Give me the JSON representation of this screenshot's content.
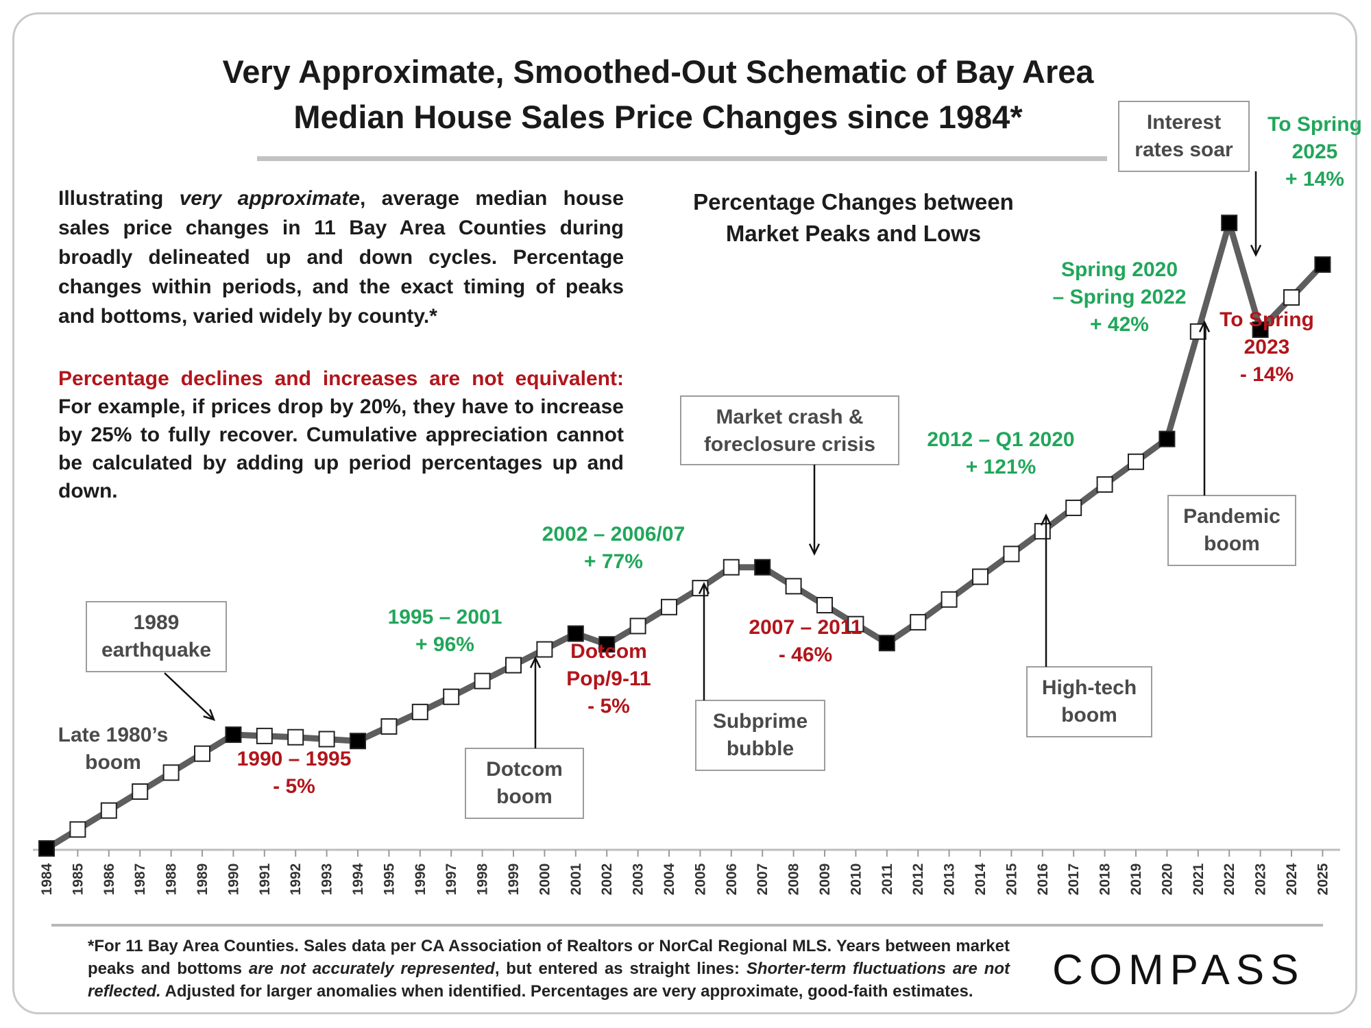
{
  "title": {
    "line1": "Very Approximate, Smoothed-Out Schematic of Bay Area",
    "line2": "Median House Sales Price Changes since 1984*"
  },
  "description": {
    "p1_a": "Illustrating ",
    "p1_em": "very approximate",
    "p1_b": ", average median house sales price changes in 11 Bay Area Counties during broadly delineated up and down cycles. Percentage changes within periods, and the exact timing of peaks and bottoms, varied widely by county.*",
    "p2_red": "Percentage declines and increases are not equivalent:",
    "p2_b": " For example, if prices drop by 20%, they have to increase by 25% to fully recover. Cumulative appreciation cannot be calculated by adding up period percentages up and down."
  },
  "subhead": {
    "line1": "Percentage Changes between",
    "line2": "Market Peaks and Lows"
  },
  "footnote": {
    "a": "*For 11 Bay Area Counties. Sales data per CA Association of Realtors or NorCal Regional MLS. Years between market peaks and bottoms ",
    "em1": "are not accurately represented",
    "b": ", but entered as straight lines: ",
    "em2": "Shorter-term fluctuations are not reflected.",
    "c": " Adjusted for larger anomalies when identified. Percentages are very approximate, good-faith estimates."
  },
  "logo": "COMPASS",
  "colors": {
    "line": "#5e5e5e",
    "green": "#21a65a",
    "red": "#b2151b",
    "gray_text": "#4a4a4a",
    "peak_marker": "#000000",
    "point_marker": "#ffffff"
  },
  "chart_data": {
    "type": "line",
    "x": [
      1984,
      1985,
      1986,
      1987,
      1988,
      1989,
      1990,
      1991,
      1992,
      1993,
      1994,
      1995,
      1996,
      1997,
      1998,
      1999,
      2000,
      2001,
      2002,
      2003,
      2004,
      2005,
      2006,
      2007,
      2008,
      2009,
      2010,
      2011,
      2012,
      2013,
      2014,
      2015,
      2016,
      2017,
      2018,
      2019,
      2020,
      2021,
      2022,
      2023,
      2024,
      2025
    ],
    "tick_labels": [
      "1984",
      "1985",
      "1986",
      "1987",
      "1988",
      "1989",
      "1990",
      "1991",
      "1992",
      "1993",
      "1994",
      "1995",
      "1996",
      "1997",
      "1998",
      "1999",
      "2000",
      "2001",
      "2002",
      "2003",
      "2004",
      "2005",
      "2006",
      "2007",
      "2008",
      "2009",
      "2010",
      "2011",
      "2012",
      "2013",
      "2014",
      "2015",
      "2016",
      "2017",
      "2018",
      "2019",
      "2020",
      "2021",
      "2022",
      "2023",
      "2024",
      "2025"
    ],
    "values": [
      0,
      3,
      6,
      9,
      12,
      15,
      18,
      17.8,
      17.6,
      17.3,
      17,
      19.3,
      21.6,
      24,
      26.5,
      29,
      31.5,
      34,
      32.3,
      35.2,
      38.2,
      41.2,
      44.5,
      44.5,
      41.5,
      38.5,
      35.5,
      32.5,
      35.8,
      39.4,
      43,
      46.6,
      50.2,
      53.9,
      57.6,
      61.2,
      64.8,
      81.8,
      99,
      82.1,
      87.2,
      92.4
    ],
    "turning_points": [
      1984,
      1990,
      1994,
      2001,
      2002,
      2007,
      2011,
      2020,
      2022,
      2023,
      2025
    ],
    "ylim": [
      0,
      100
    ],
    "xlabel": "",
    "ylabel": "",
    "grid": false,
    "period_labels": [
      {
        "line1": "1990 – 1995",
        "line2": "- 5%",
        "color": "red"
      },
      {
        "line1": "1995 – 2001",
        "line2": "+ 96%",
        "color": "green"
      },
      {
        "line1": "Dotcom",
        "line2": "Pop/9-11",
        "line3": "- 5%",
        "color": "red"
      },
      {
        "line1": "2002 – 2006/07",
        "line2": "+ 77%",
        "color": "green"
      },
      {
        "line1": "2007 – 2011",
        "line2": "- 46%",
        "color": "red"
      },
      {
        "line1": "2012 –  Q1 2020",
        "line2": "+ 121%",
        "color": "green"
      },
      {
        "line1": "Spring 2020",
        "line2": "– Spring 2022",
        "line3": "+ 42%",
        "color": "green"
      },
      {
        "line1": "To Spring",
        "line2": "2023",
        "line3": "- 14%",
        "color": "red"
      },
      {
        "line1": "To Spring",
        "line2": "2025",
        "line3": "+ 14%",
        "color": "green"
      }
    ],
    "annotations": [
      {
        "text1": "Late 1980’s",
        "text2": "boom",
        "boxed": false
      },
      {
        "text1": "1989",
        "text2": "earthquake",
        "boxed": true
      },
      {
        "text1": "Dotcom",
        "text2": "boom",
        "boxed": true
      },
      {
        "text1": "Subprime",
        "text2": "bubble",
        "boxed": true
      },
      {
        "text1": "Market crash &",
        "text2": "foreclosure crisis",
        "boxed": true
      },
      {
        "text1": "High-tech",
        "text2": "boom",
        "boxed": true
      },
      {
        "text1": "Pandemic",
        "text2": "boom",
        "boxed": true
      },
      {
        "text1": "Interest",
        "text2": "rates soar",
        "boxed": true
      }
    ]
  }
}
